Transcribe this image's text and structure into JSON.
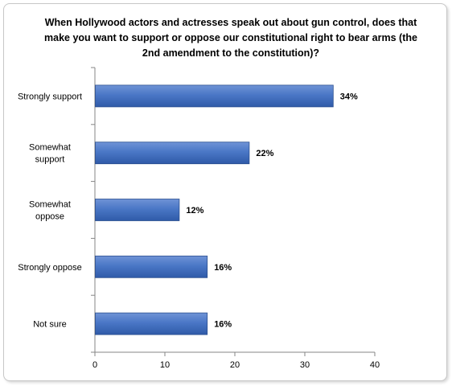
{
  "chart_data": {
    "type": "bar",
    "orientation": "horizontal",
    "title": "When Hollywood actors and actresses speak out about gun control, does that make you want to support or oppose our constitutional right to bear arms (the 2nd amendment to the constitution)?",
    "categories": [
      "Strongly support",
      "Somewhat support",
      "Somewhat oppose",
      "Strongly oppose",
      "Not sure"
    ],
    "category_label_lines": [
      [
        "Strongly support"
      ],
      [
        "Somewhat",
        "support"
      ],
      [
        "Somewhat",
        "oppose"
      ],
      [
        "Strongly oppose"
      ],
      [
        "Not sure"
      ]
    ],
    "values": [
      34,
      22,
      12,
      16,
      16
    ],
    "data_labels": [
      "34%",
      "22%",
      "12%",
      "16%",
      "16%"
    ],
    "xlim": [
      0,
      40
    ],
    "xticks": [
      0,
      10,
      20,
      30,
      40
    ],
    "xlabel": "",
    "ylabel": "",
    "grid": false,
    "legend": "none",
    "bar_color": "#4472c4"
  }
}
